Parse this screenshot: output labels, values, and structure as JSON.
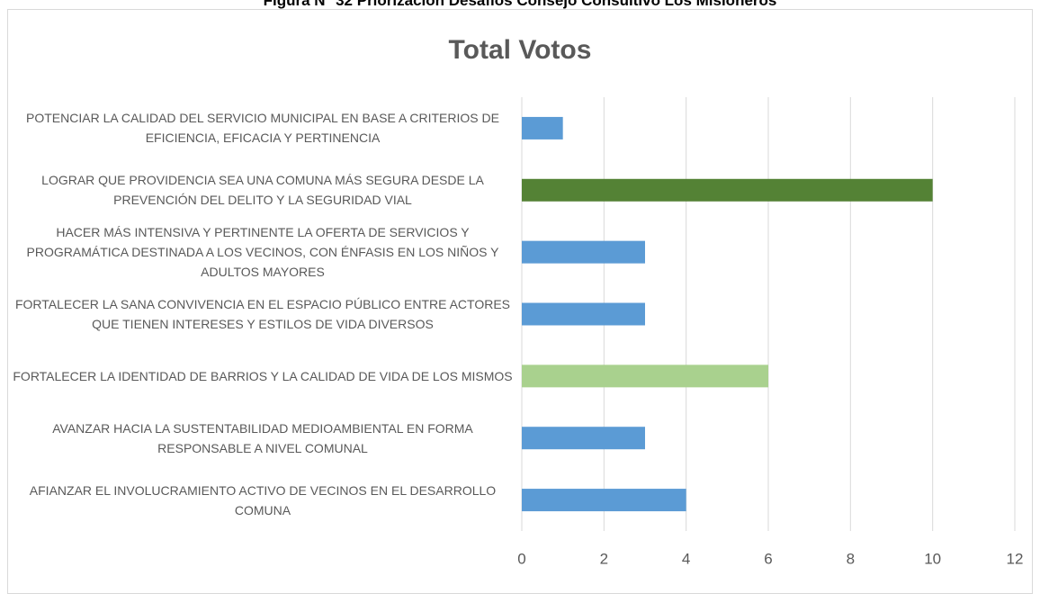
{
  "caption": "Figura N° 32 Priorización Desafíos Consejo Consultivo Los Misioneros",
  "chart_data": {
    "type": "barh",
    "title": "Total Votos",
    "categories": [
      "POTENCIAR LA CALIDAD DEL SERVICIO MUNICIPAL EN BASE A CRITERIOS DE EFICIENCIA, EFICACIA Y PERTINENCIA",
      "LOGRAR QUE PROVIDENCIA SEA UNA COMUNA MÁS SEGURA DESDE LA PREVENCIÓN DEL DELITO Y LA SEGURIDAD VIAL",
      "HACER MÁS INTENSIVA Y PERTINENTE LA OFERTA DE SERVICIOS Y PROGRAMÁTICA DESTINADA A LOS VECINOS, CON ÉNFASIS EN LOS NIÑOS Y ADULTOS MAYORES",
      "FORTALECER LA SANA CONVIVENCIA EN EL ESPACIO PÚBLICO ENTRE ACTORES QUE TIENEN INTERESES Y ESTILOS DE VIDA DIVERSOS",
      "FORTALECER LA IDENTIDAD DE BARRIOS Y LA CALIDAD DE VIDA DE LOS MISMOS",
      "AVANZAR HACIA LA SUSTENTABILIDAD MEDIOAMBIENTAL EN FORMA RESPONSABLE A NIVEL COMUNAL",
      "AFIANZAR EL INVOLUCRAMIENTO ACTIVO DE VECINOS EN EL DESARROLLO COMUNA"
    ],
    "values": [
      1,
      10,
      3,
      3,
      6,
      3,
      4
    ],
    "colors": [
      "#5b9bd5",
      "#548235",
      "#5b9bd5",
      "#5b9bd5",
      "#a9d18e",
      "#5b9bd5",
      "#5b9bd5"
    ],
    "xlim": [
      0,
      12
    ],
    "xticks": [
      0,
      2,
      4,
      6,
      8,
      10,
      12
    ],
    "grid": true
  }
}
